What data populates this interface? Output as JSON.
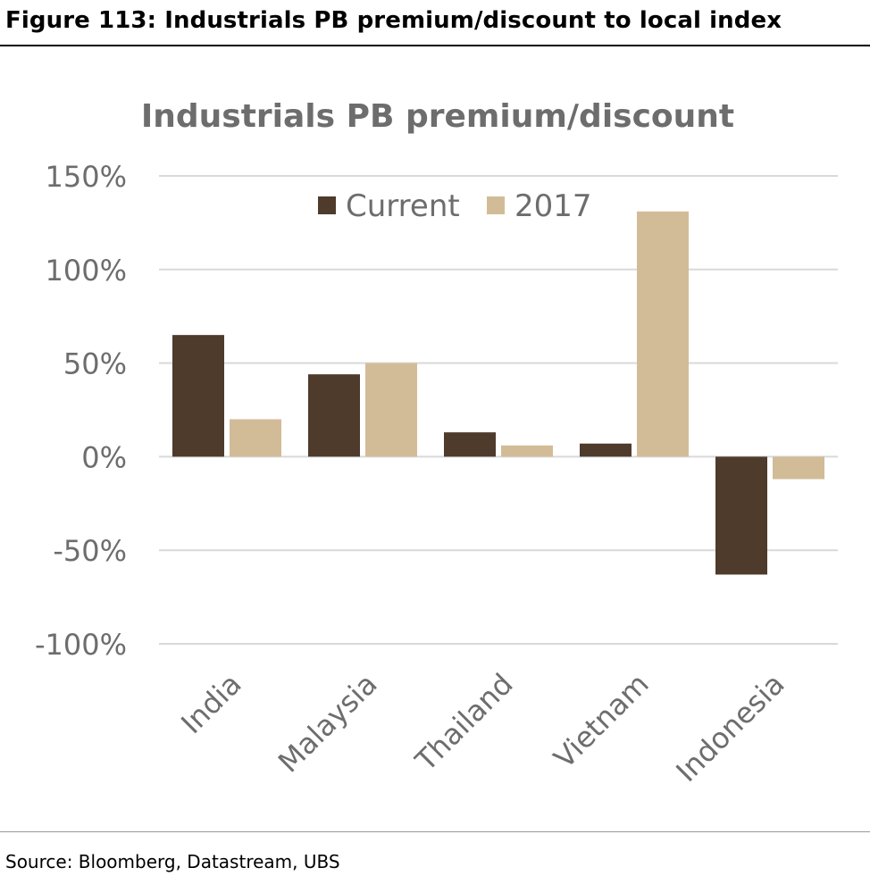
{
  "figure_title": "Figure 113: Industrials PB premium/discount to local index",
  "source": "Source: Bloomberg, Datastream, UBS",
  "colors": {
    "current": "#4e3b2c",
    "y2017": "#d2bc98",
    "grid": "#d9d9d9",
    "text": "#6d6d6d"
  },
  "chart_data": {
    "type": "bar",
    "title": "Industrials PB premium/discount",
    "xlabel": "",
    "ylabel": "",
    "categories": [
      "India",
      "Malaysia",
      "Thailand",
      "Vietnam",
      "Indonesia"
    ],
    "series": [
      {
        "name": "Current",
        "values": [
          65,
          44,
          13,
          7,
          -63
        ]
      },
      {
        "name": "2017",
        "values": [
          20,
          50,
          6,
          131,
          -12
        ]
      }
    ],
    "ylim": [
      -100,
      150
    ],
    "yticks": [
      150,
      100,
      50,
      0,
      -50,
      -100
    ],
    "ytick_labels": [
      "150%",
      "100%",
      "50%",
      "0%",
      "-50%",
      "-100%"
    ],
    "grid": true,
    "legend_position": "top"
  }
}
